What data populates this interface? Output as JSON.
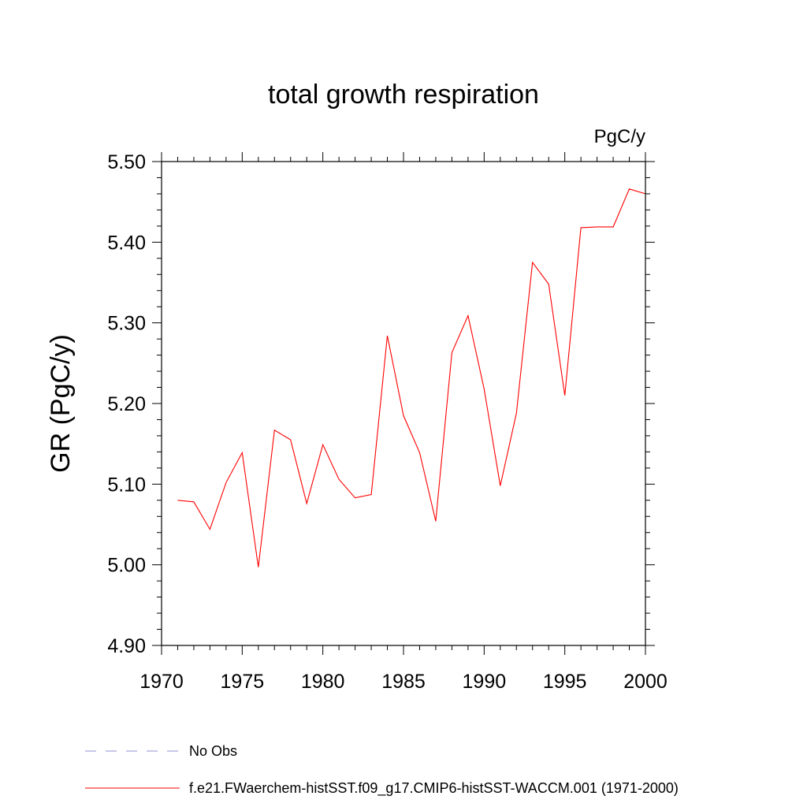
{
  "chart_data": {
    "type": "line",
    "title": "total growth respiration",
    "units": "PgC/y",
    "ylabel": "GR  (PgC/y)",
    "xlabel": "",
    "xlim": [
      1970,
      2000
    ],
    "ylim": [
      4.9,
      5.5
    ],
    "x_ticks": [
      1970,
      1975,
      1980,
      1985,
      1990,
      1995,
      2000
    ],
    "x_tick_labels": [
      "1970",
      "1975",
      "1980",
      "1985",
      "1990",
      "1995",
      "2000"
    ],
    "y_ticks": [
      4.9,
      5.0,
      5.1,
      5.2,
      5.3,
      5.4,
      5.5
    ],
    "y_tick_labels": [
      "4.90",
      "5.00",
      "5.10",
      "5.20",
      "5.30",
      "5.40",
      "5.50"
    ],
    "grid": false,
    "legend_position": "bottom",
    "series": [
      {
        "name": "f.e21.FWaerchem-histSST.f09_g17.CMIP6-histSST-WACCM.001 (1971-2000)",
        "color": "#ff0000",
        "style": "solid",
        "x": [
          1971,
          1972,
          1973,
          1974,
          1975,
          1976,
          1977,
          1978,
          1979,
          1980,
          1981,
          1982,
          1983,
          1984,
          1985,
          1986,
          1987,
          1988,
          1989,
          1990,
          1991,
          1992,
          1993,
          1994,
          1995,
          1996,
          1997,
          1998,
          1999,
          2000
        ],
        "y": [
          5.08,
          5.078,
          5.044,
          5.102,
          5.139,
          4.997,
          5.167,
          5.155,
          5.076,
          5.149,
          5.106,
          5.083,
          5.087,
          5.284,
          5.185,
          5.139,
          5.054,
          5.263,
          5.309,
          5.218,
          5.098,
          5.188,
          5.375,
          5.348,
          5.21,
          5.418,
          5.419,
          5.419,
          5.466,
          5.46
        ]
      }
    ],
    "legend": [
      {
        "label": "No Obs",
        "color": "#8f8fcf",
        "style": "dashed"
      },
      {
        "label": "f.e21.FWaerchem-histSST.f09_g17.CMIP6-histSST-WACCM.001 (1971-2000)",
        "color": "#ff0000",
        "style": "solid"
      }
    ]
  }
}
